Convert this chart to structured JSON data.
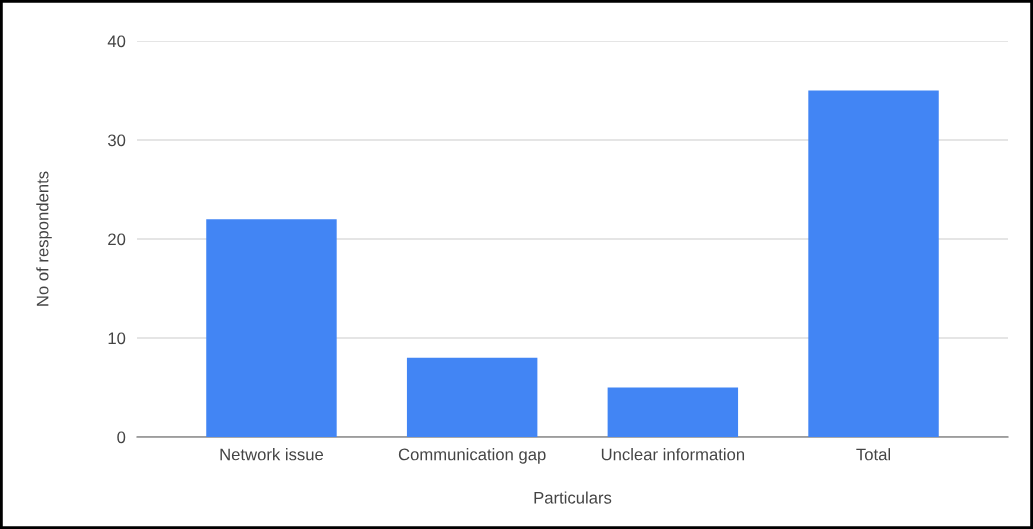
{
  "chart_data": {
    "type": "bar",
    "xlabel": "Particulars",
    "ylabel": "No of respondents",
    "categories": [
      "Network issue",
      "Communication gap",
      "Unclear information",
      "Total"
    ],
    "values": [
      22,
      8,
      5,
      35
    ],
    "color": "#4285f4",
    "ylim": [
      0,
      40
    ],
    "yticks": [
      0,
      10,
      20,
      30,
      40
    ],
    "grid": "y",
    "legend": false
  }
}
